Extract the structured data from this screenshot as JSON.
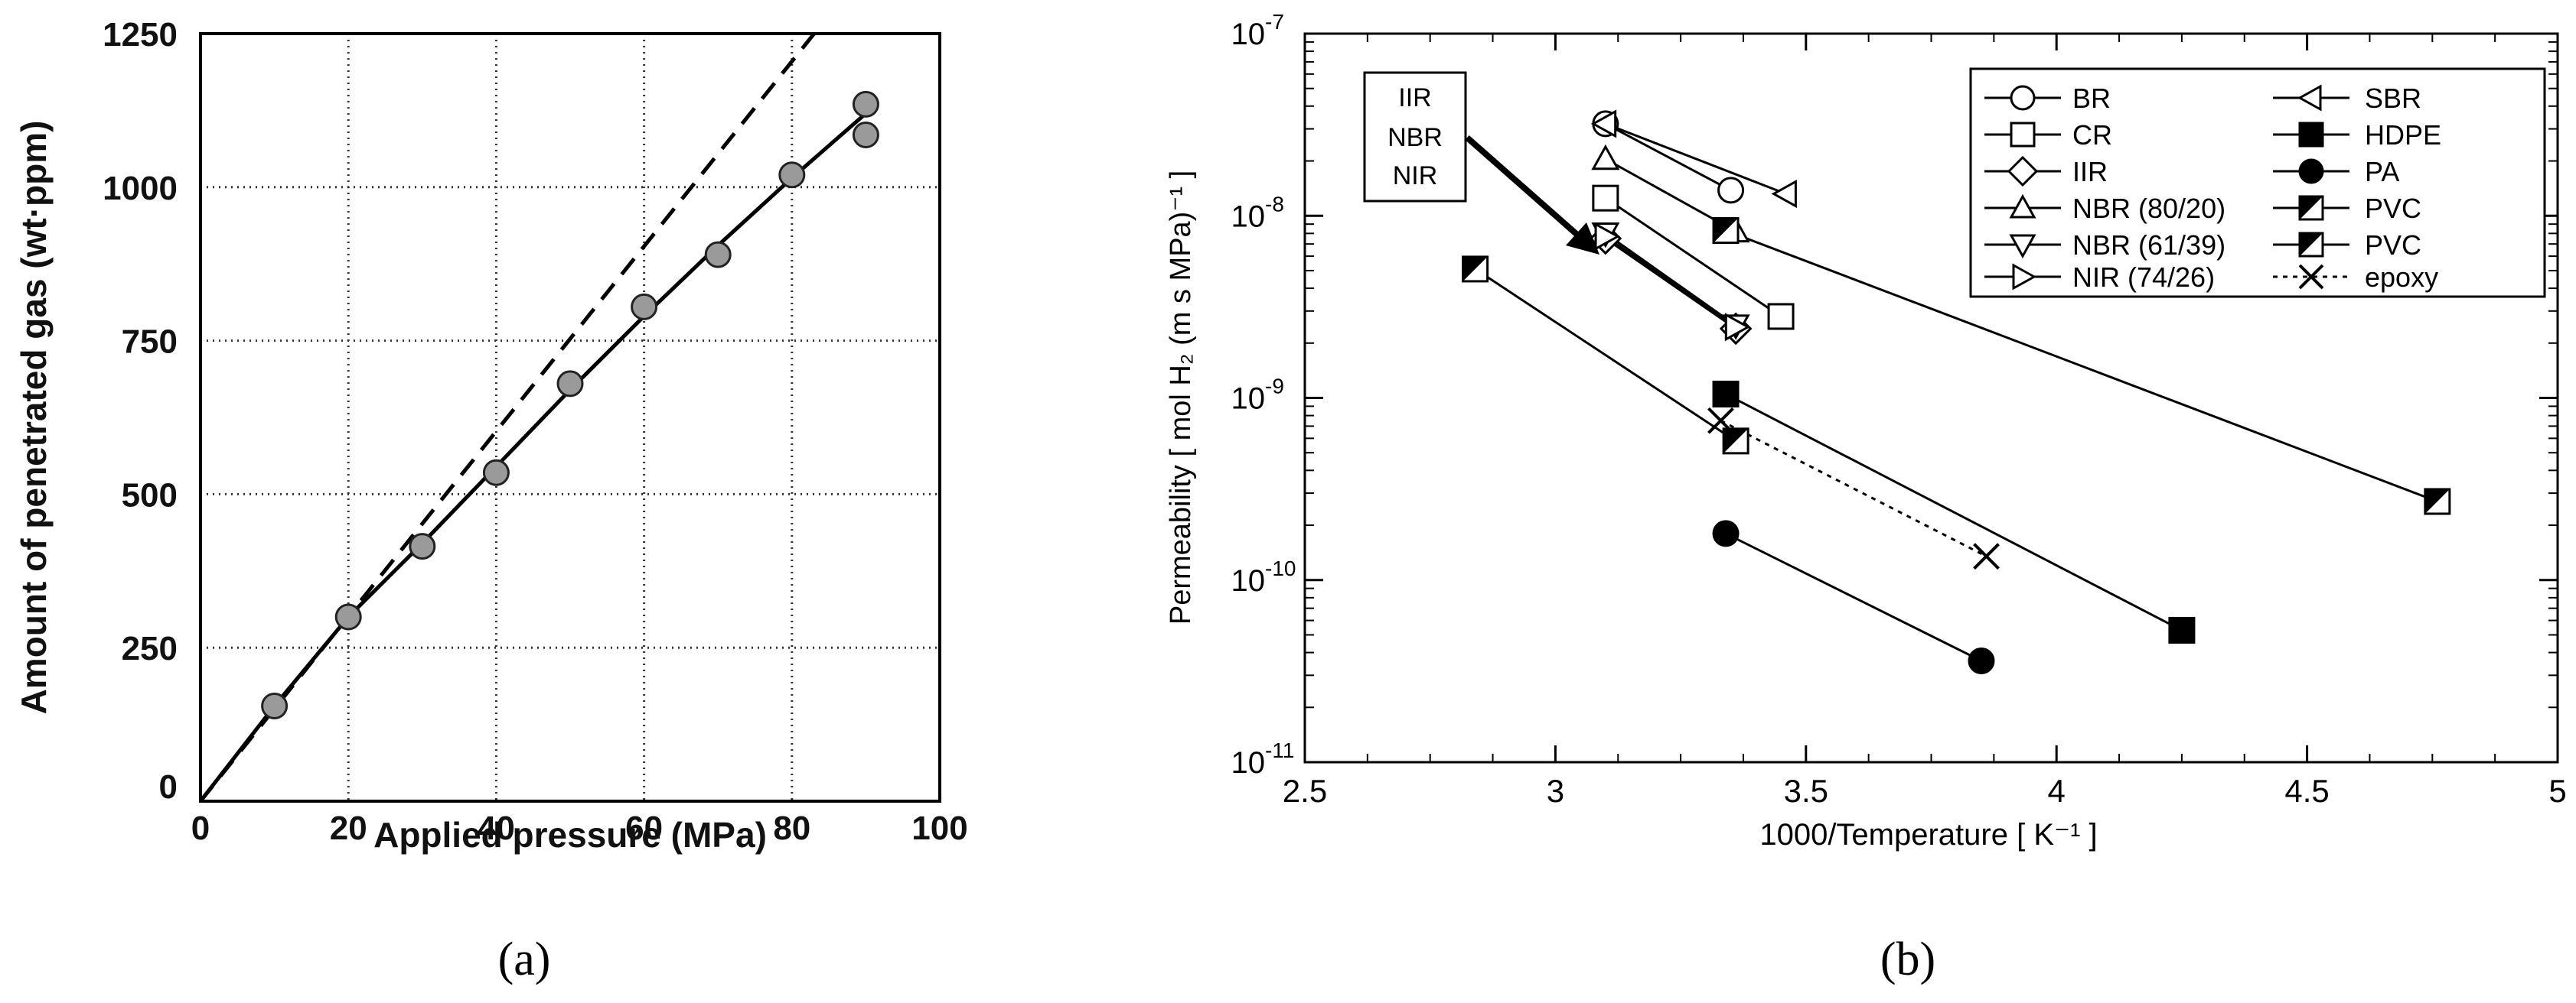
{
  "panel_a_label": "(a)",
  "panel_b_label": "(b)",
  "chart_data": [
    {
      "type": "scatter",
      "panel": "a",
      "xlabel": "Applied pressure (MPa)",
      "ylabel": "Amount of penetrated gas (wt·ppm)",
      "xlim": [
        0,
        100
      ],
      "ylim": [
        0,
        1250
      ],
      "xticks": [
        0,
        20,
        40,
        60,
        80,
        100
      ],
      "yticks": [
        0,
        250,
        500,
        750,
        1000,
        1250
      ],
      "xtick_labels": [
        "0",
        "20",
        "40",
        "60",
        "80",
        "100"
      ],
      "ytick_labels": [
        "0",
        "250",
        "500",
        "750",
        "1000",
        "1250"
      ],
      "grid": "dotted",
      "points": [
        {
          "x": 10,
          "y": 155
        },
        {
          "x": 20,
          "y": 300
        },
        {
          "x": 30,
          "y": 415
        },
        {
          "x": 40,
          "y": 535
        },
        {
          "x": 50,
          "y": 680
        },
        {
          "x": 60,
          "y": 805
        },
        {
          "x": 70,
          "y": 890
        },
        {
          "x": 80,
          "y": 1020
        },
        {
          "x": 90,
          "y": 1135
        },
        {
          "x": 90,
          "y": 1085
        }
      ],
      "fit_curve": [
        [
          0,
          0
        ],
        [
          10,
          155
        ],
        [
          20,
          300
        ],
        [
          30,
          420
        ],
        [
          40,
          545
        ],
        [
          50,
          670
        ],
        [
          60,
          790
        ],
        [
          70,
          905
        ],
        [
          80,
          1015
        ],
        [
          90,
          1120
        ]
      ],
      "dashed_line": [
        [
          0,
          0
        ],
        [
          83,
          1250
        ]
      ]
    },
    {
      "type": "line",
      "panel": "b",
      "xlabel": "1000/Temperature [ K⁻¹ ]",
      "ylabel": "Permeability [ mol H₂ (m s MPa)⁻¹ ]",
      "yscale": "log",
      "xlim": [
        2.5,
        5
      ],
      "ylim": [
        1e-11,
        1e-07
      ],
      "xticks": [
        2.5,
        3,
        3.5,
        4,
        4.5,
        5
      ],
      "xtick_labels": [
        "2.5",
        "3",
        "3.5",
        "4",
        "4.5",
        "5"
      ],
      "yticks": [
        1e-11,
        1e-10,
        1e-09,
        1e-08,
        1e-07
      ],
      "ytick_labels": [
        {
          "base": "10",
          "exp": "-11"
        },
        {
          "base": "10",
          "exp": "-10"
        },
        {
          "base": "10",
          "exp": "-9"
        },
        {
          "base": "10",
          "exp": "-8"
        },
        {
          "base": "10",
          "exp": "-7"
        }
      ],
      "annotation": {
        "lines": [
          "IIR",
          "NBR",
          "NIR"
        ]
      },
      "series": [
        {
          "name": "BR",
          "marker": "circle-open",
          "line": "solid",
          "points": [
            [
              3.1,
              3.2e-08
            ],
            [
              3.35,
              1.38e-08
            ]
          ]
        },
        {
          "name": "CR",
          "marker": "square-open",
          "line": "solid",
          "points": [
            [
              3.1,
              1.25e-08
            ],
            [
              3.45,
              2.8e-09
            ]
          ]
        },
        {
          "name": "IIR",
          "marker": "diamond-open",
          "line": "solid",
          "points": [
            [
              3.1,
              7.5e-09
            ],
            [
              3.36,
              2.4e-09
            ]
          ]
        },
        {
          "name": "NBR (80/20)",
          "marker": "triangle-up-open",
          "line": "solid",
          "points": [
            [
              3.1,
              2.05e-08
            ],
            [
              3.36,
              8.2e-09
            ]
          ]
        },
        {
          "name": "NBR (61/39)",
          "marker": "triangle-down-open",
          "line": "solid",
          "points": [
            [
              3.1,
              8e-09
            ],
            [
              3.36,
              2.5e-09
            ]
          ]
        },
        {
          "name": "NIR (74/26)",
          "marker": "triangle-right-open",
          "line": "solid",
          "points": [
            [
              3.1,
              7.7e-09
            ],
            [
              3.36,
              2.45e-09
            ]
          ]
        },
        {
          "name": "SBR",
          "marker": "triangle-left-open",
          "line": "solid",
          "points": [
            [
              3.1,
              3.2e-08
            ],
            [
              3.46,
              1.32e-08
            ]
          ]
        },
        {
          "name": "HDPE",
          "marker": "square-filled",
          "line": "solid",
          "points": [
            [
              3.34,
              1.05e-09
            ],
            [
              4.25,
              5.3e-11
            ]
          ]
        },
        {
          "name": "PA",
          "marker": "circle-filled",
          "line": "solid",
          "points": [
            [
              3.34,
              1.8e-10
            ],
            [
              3.85,
              3.6e-11
            ]
          ]
        },
        {
          "name": "PVC",
          "marker": "square-half-lower",
          "line": "solid",
          "points": [
            [
              2.84,
              5.1e-09
            ],
            [
              3.36,
              5.8e-10
            ]
          ]
        },
        {
          "name": "PVC",
          "marker": "square-half-upper",
          "line": "solid",
          "points": [
            [
              3.34,
              8.3e-09
            ],
            [
              4.76,
              2.7e-10
            ]
          ]
        },
        {
          "name": "epoxy",
          "marker": "x",
          "line": "dotted",
          "points": [
            [
              3.33,
              7.5e-10
            ],
            [
              3.86,
              1.35e-10
            ]
          ]
        }
      ]
    }
  ]
}
